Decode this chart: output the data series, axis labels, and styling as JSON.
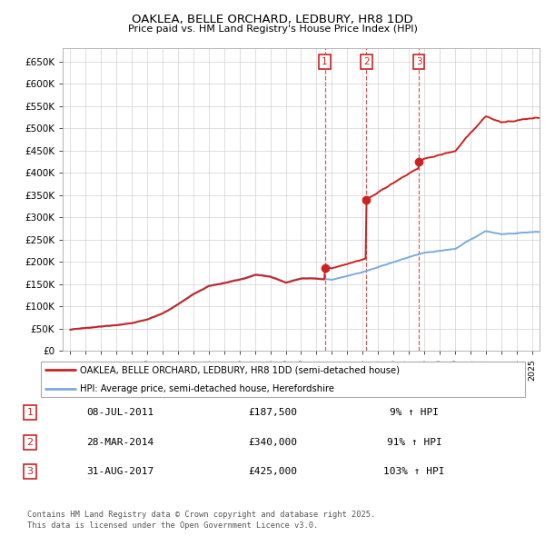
{
  "title": "OAKLEA, BELLE ORCHARD, LEDBURY, HR8 1DD",
  "subtitle": "Price paid vs. HM Land Registry's House Price Index (HPI)",
  "legend_property": "OAKLEA, BELLE ORCHARD, LEDBURY, HR8 1DD (semi-detached house)",
  "legend_hpi": "HPI: Average price, semi-detached house, Herefordshire",
  "footer": "Contains HM Land Registry data © Crown copyright and database right 2025.\nThis data is licensed under the Open Government Licence v3.0.",
  "sales": [
    {
      "num": 1,
      "date": "08-JUL-2011",
      "price": 187500,
      "pct": "9%",
      "year": 2011.54
    },
    {
      "num": 2,
      "date": "28-MAR-2014",
      "price": 340000,
      "pct": "91%",
      "year": 2014.24
    },
    {
      "num": 3,
      "date": "31-AUG-2017",
      "price": 425000,
      "pct": "103%",
      "year": 2017.66
    }
  ],
  "hpi_color": "#7aabdc",
  "property_color": "#cc2222",
  "background_color": "#ffffff",
  "grid_color": "#d0d0d0",
  "ylim": [
    0,
    680000
  ],
  "xlim": [
    1994.5,
    2025.5
  ],
  "yticks": [
    0,
    50000,
    100000,
    150000,
    200000,
    250000,
    300000,
    350000,
    400000,
    450000,
    500000,
    550000,
    600000,
    650000
  ],
  "ytick_labels": [
    "£0",
    "£50K",
    "£100K",
    "£150K",
    "£200K",
    "£250K",
    "£300K",
    "£350K",
    "£400K",
    "£450K",
    "£500K",
    "£550K",
    "£600K",
    "£650K"
  ],
  "hpi_base_points": {
    "1995": 48000,
    "1996": 50000,
    "1997": 53000,
    "1998": 57000,
    "1999": 63000,
    "2000": 72000,
    "2001": 84000,
    "2002": 103000,
    "2003": 125000,
    "2004": 143000,
    "2005": 150000,
    "2006": 158000,
    "2007": 170000,
    "2008": 165000,
    "2009": 152000,
    "2010": 162000,
    "2011": 163000,
    "2012": 160000,
    "2013": 167000,
    "2014": 176000,
    "2015": 188000,
    "2016": 200000,
    "2017": 212000,
    "2018": 222000,
    "2019": 228000,
    "2020": 232000,
    "2021": 252000,
    "2022": 272000,
    "2023": 265000,
    "2024": 268000,
    "2025": 270000
  }
}
